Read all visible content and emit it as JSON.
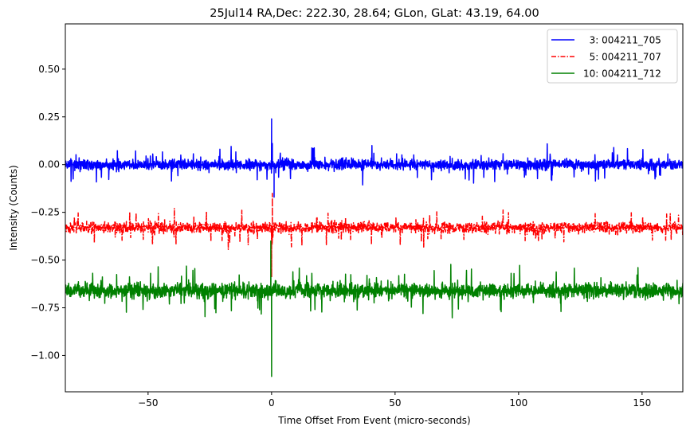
{
  "chart_data": {
    "type": "line",
    "title": "25Jul14 RA,Dec:  222.30,  28.64; GLon, GLat:   43.19,  64.00",
    "xlabel": "Time Offset From Event (micro-seconds)",
    "ylabel": "Intensity (Counts)",
    "xlim": [
      -83.5,
      166.5
    ],
    "ylim": [
      -1.19,
      0.737
    ],
    "xticks": [
      -50,
      0,
      50,
      100,
      150
    ],
    "xtick_labels": [
      "−50",
      "0",
      "50",
      "100",
      "150"
    ],
    "yticks": [
      0.5,
      0.25,
      0.0,
      -0.25,
      -0.5,
      -0.75,
      -1.0
    ],
    "ytick_labels": [
      "0.50",
      "0.25",
      "0.00",
      "−0.25",
      "−0.50",
      "−0.75",
      "−1.00"
    ],
    "grid": false,
    "legend_position": "upper right",
    "series": [
      {
        "name": "  3: 004211_705",
        "color": "#0000ff",
        "linestyle": "solid",
        "baseline": 0.0,
        "noise_amplitude": 0.035,
        "typical_range": [
          -0.09,
          0.1
        ],
        "features": [
          {
            "x": 0.0,
            "y": 0.24
          },
          {
            "x": 0.3,
            "y": 0.11
          },
          {
            "x": 1.0,
            "y": -0.17
          }
        ]
      },
      {
        "name": "  5: 004211_707",
        "color": "#ff0000",
        "linestyle": "dashdot",
        "baseline": -0.33,
        "noise_amplitude": 0.035,
        "typical_range": [
          -0.44,
          -0.21
        ],
        "features": [
          {
            "x": 0.3,
            "y": -0.15
          },
          {
            "x": 0.0,
            "y": -0.59
          }
        ]
      },
      {
        "name": "10: 004211_712",
        "color": "#008000",
        "linestyle": "solid",
        "baseline": -0.66,
        "noise_amplitude": 0.05,
        "typical_range": [
          -0.84,
          -0.5
        ],
        "features": [
          {
            "x": 0.0,
            "y": -1.11
          },
          {
            "x": -0.3,
            "y": -0.4
          }
        ]
      }
    ]
  }
}
